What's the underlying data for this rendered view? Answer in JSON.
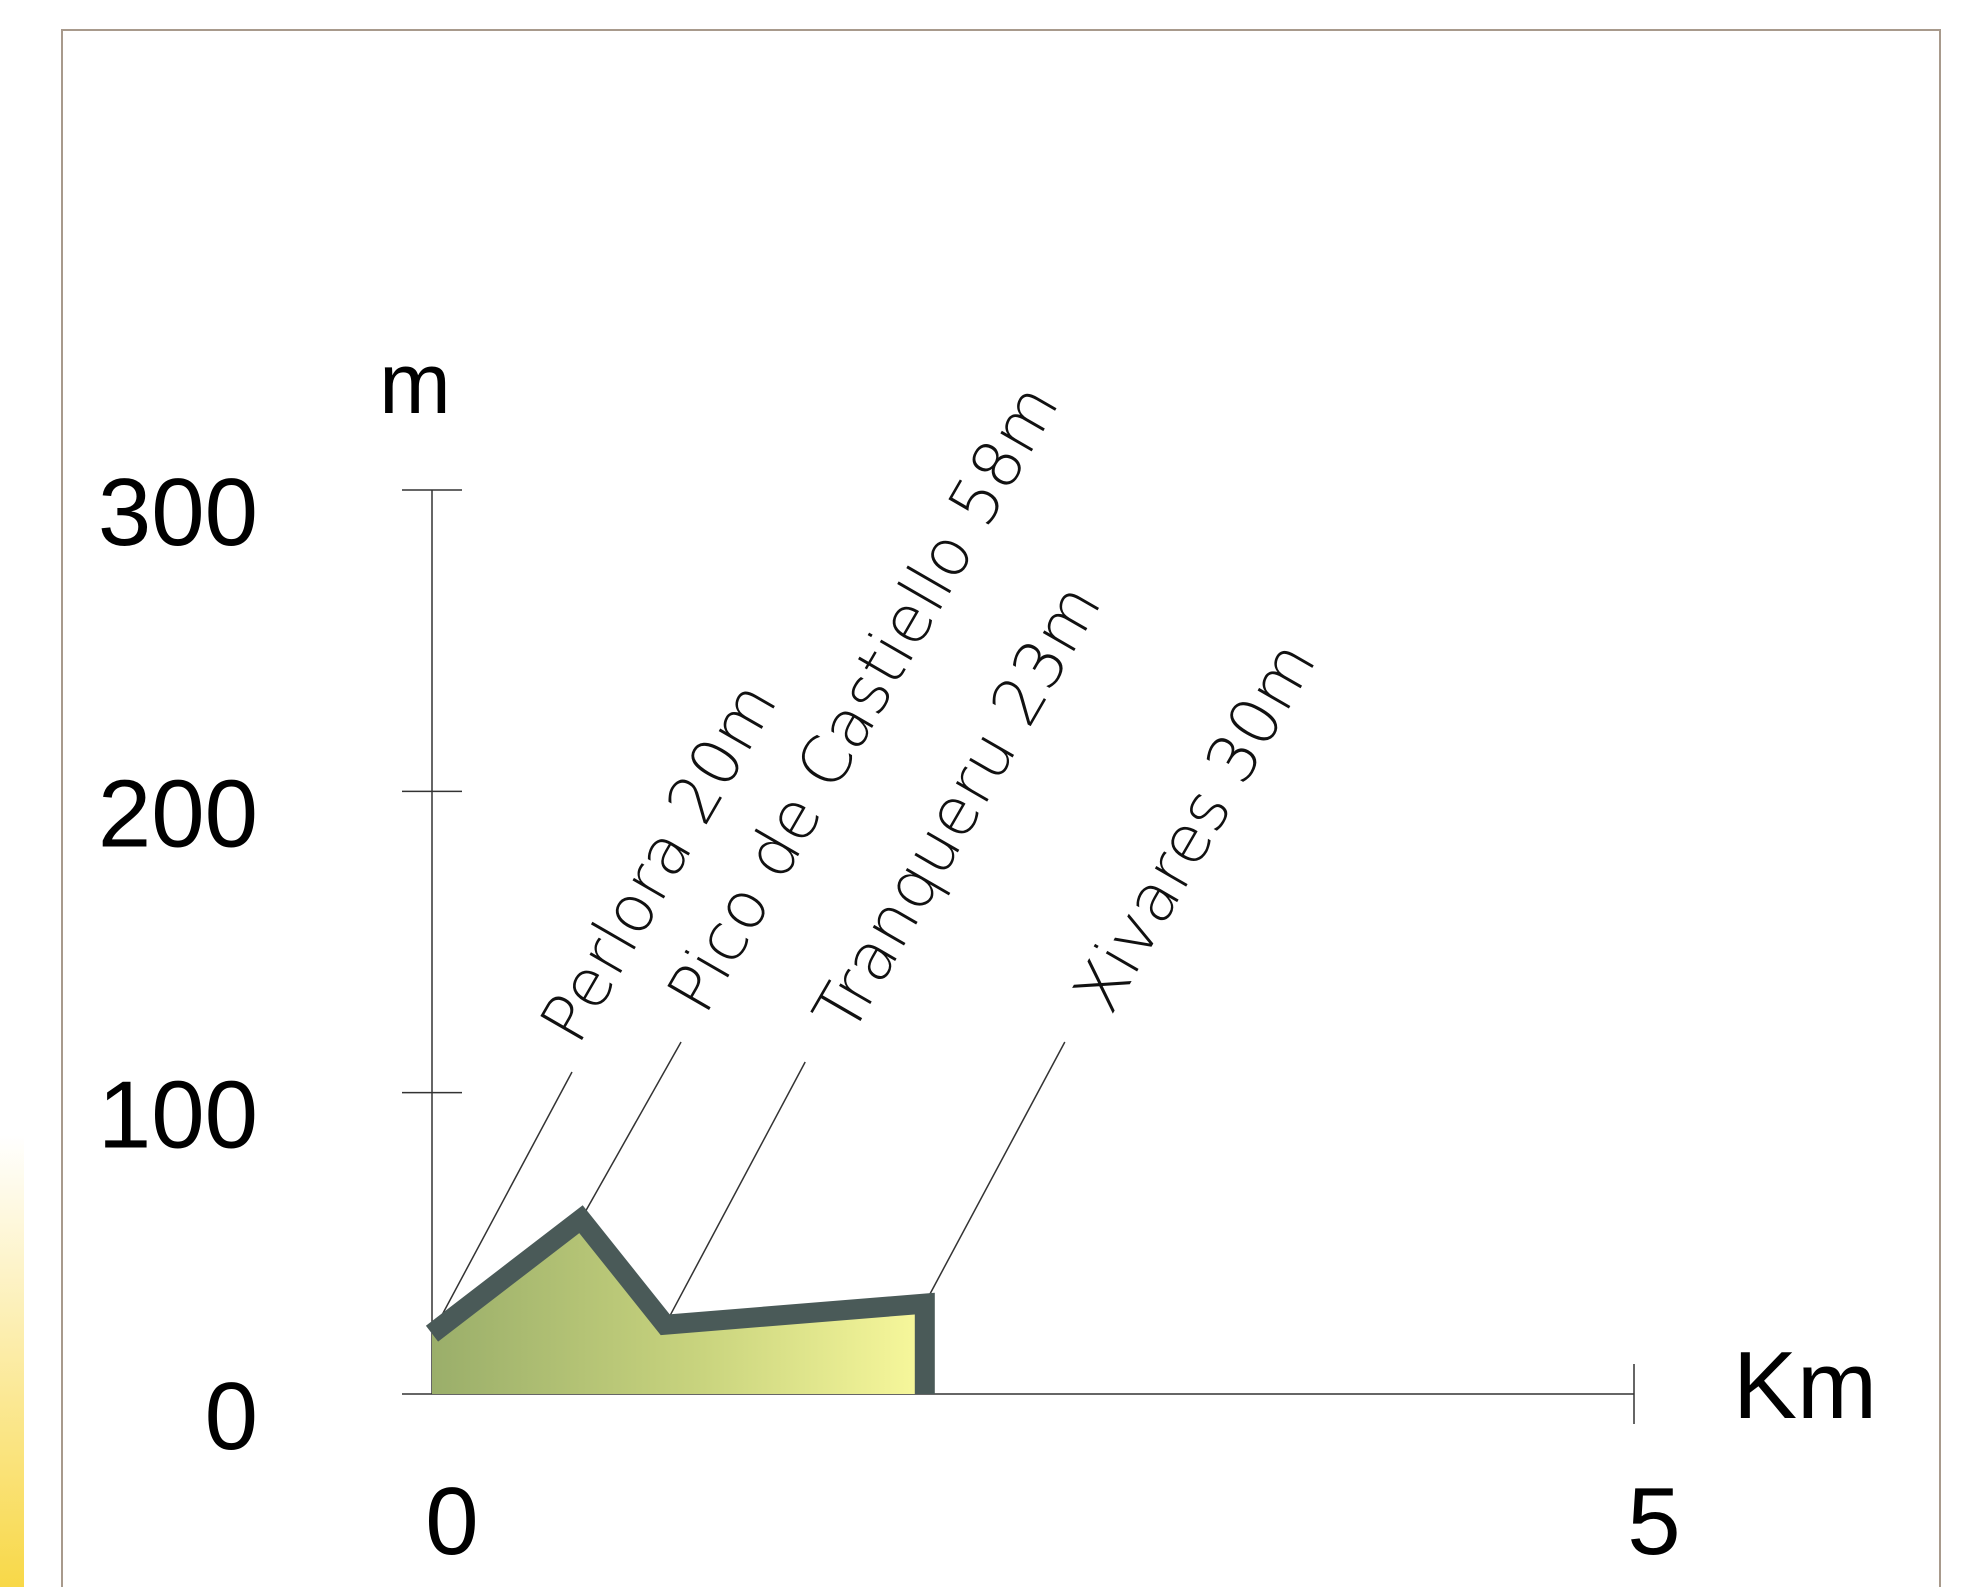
{
  "chart_data": {
    "type": "area",
    "title": "",
    "xlabel": "Km",
    "ylabel": "m",
    "xlim": [
      0,
      5
    ],
    "ylim": [
      0,
      300
    ],
    "x_ticks": [
      0,
      5
    ],
    "y_ticks": [
      0,
      100,
      200,
      300
    ],
    "grid": false,
    "profile": [
      {
        "x": 0.0,
        "y": 20
      },
      {
        "x": 0.62,
        "y": 58
      },
      {
        "x": 0.97,
        "y": 23
      },
      {
        "x": 2.05,
        "y": 30
      },
      {
        "x": 2.05,
        "y": 0
      }
    ],
    "peaks": [
      {
        "label": "Perlora 20m",
        "x": 0.0,
        "y": 20
      },
      {
        "label": "Pico de Castiello 58m",
        "x": 0.62,
        "y": 58
      },
      {
        "label": "Tranqueru 23m",
        "x": 0.97,
        "y": 23
      },
      {
        "label": "Xivares 30m",
        "x": 2.05,
        "y": 30
      }
    ],
    "colors": {
      "fill_start": "#9aae6a",
      "fill_mid": "#c9d47e",
      "fill_end": "#f8f89c",
      "outline": "#4a5a58",
      "frame": "#a89a8c",
      "side_strip": "#f8d848"
    }
  }
}
